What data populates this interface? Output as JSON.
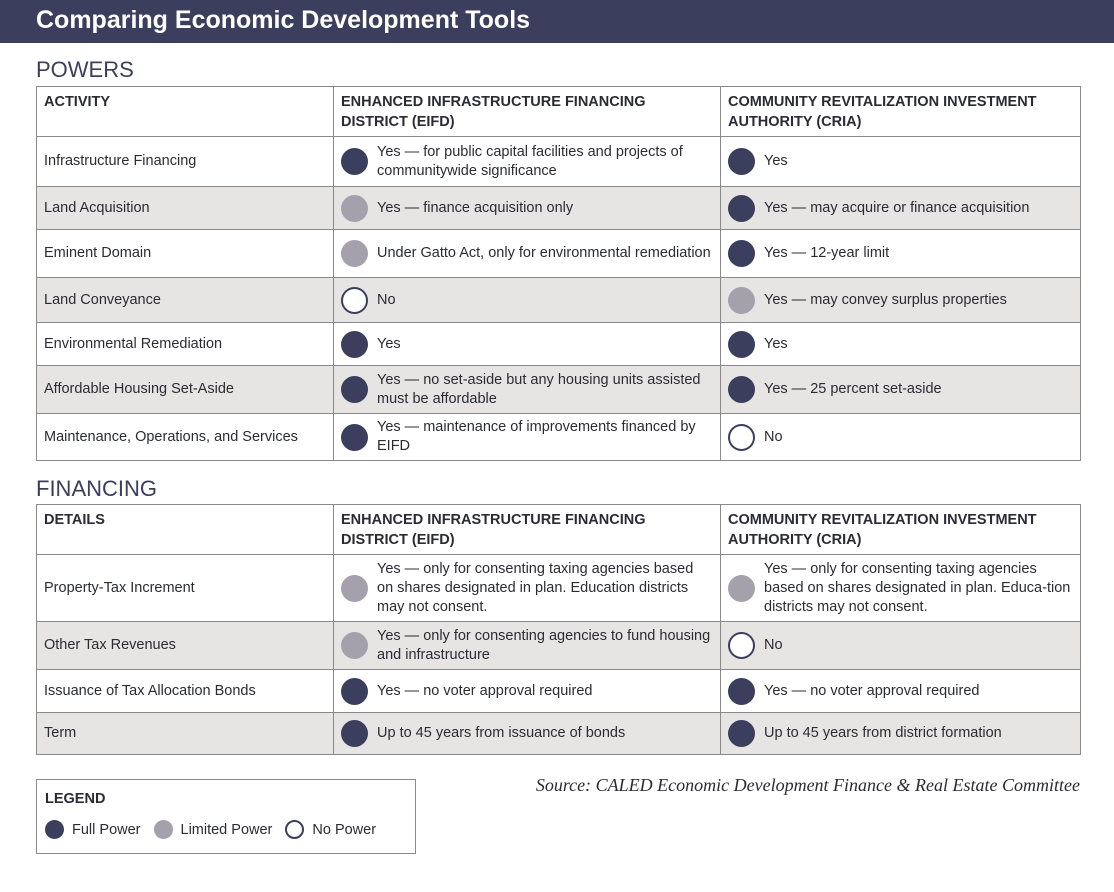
{
  "header": {
    "title": "Comparing Economic Development Tools"
  },
  "colors": {
    "full_power": "#3b3e5c",
    "limited_power": "#a4a1ad",
    "no_power": "#ffffff",
    "header_bg": "#3b3e5c",
    "shaded_row": "#e6e5e3"
  },
  "powers": {
    "title": "POWERS",
    "columns": [
      "ACTIVITY",
      "ENHANCED INFRASTRUCTURE FINANCING DISTRICT (EIFD)",
      "COMMUNITY REVITALIZATION INVESTMENT AUTHORITY (CRIA)"
    ],
    "rows": [
      {
        "activity": "Infrastructure Financing",
        "eifd": {
          "level": "full",
          "text": "Yes — for public capital facilities and projects of communitywide significance"
        },
        "cria": {
          "level": "full",
          "text": "Yes"
        }
      },
      {
        "activity": "Land Acquisition",
        "eifd": {
          "level": "limited",
          "text": "Yes — finance acquisition only"
        },
        "cria": {
          "level": "full",
          "text": "Yes — may acquire or finance acquisition"
        }
      },
      {
        "activity": "Eminent Domain",
        "eifd": {
          "level": "limited",
          "text": "Under Gatto Act, only for environmental remediation"
        },
        "cria": {
          "level": "full",
          "text": "Yes — 12-year limit"
        }
      },
      {
        "activity": "Land Conveyance",
        "eifd": {
          "level": "none",
          "text": "No"
        },
        "cria": {
          "level": "limited",
          "text": "Yes — may convey surplus properties"
        }
      },
      {
        "activity": "Environmental Remediation",
        "eifd": {
          "level": "full",
          "text": "Yes"
        },
        "cria": {
          "level": "full",
          "text": "Yes"
        }
      },
      {
        "activity": "Affordable Housing Set-Aside",
        "eifd": {
          "level": "full",
          "text": "Yes — no set-aside but any housing units assisted must be affordable"
        },
        "cria": {
          "level": "full",
          "text": "Yes — 25 percent set-aside"
        }
      },
      {
        "activity": "Maintenance, Operations, and Services",
        "eifd": {
          "level": "full",
          "text": "Yes — maintenance of improvements financed by EIFD"
        },
        "cria": {
          "level": "none",
          "text": "No"
        }
      }
    ]
  },
  "financing": {
    "title": "FINANCING",
    "columns": [
      "DETAILS",
      "ENHANCED INFRASTRUCTURE FINANCING DISTRICT (EIFD)",
      "COMMUNITY REVITALIZATION INVESTMENT AUTHORITY (CRIA)"
    ],
    "rows": [
      {
        "activity": "Property-Tax Increment",
        "eifd": {
          "level": "limited",
          "text": "Yes — only for consenting taxing agencies based on shares designated in plan. Education districts may not consent."
        },
        "cria": {
          "level": "limited",
          "text": "Yes — only for consenting taxing agencies based on shares designated in plan. Educa-tion districts may not consent."
        }
      },
      {
        "activity": "Other Tax Revenues",
        "eifd": {
          "level": "limited",
          "text": "Yes — only for consenting agencies to fund housing and infrastructure"
        },
        "cria": {
          "level": "none",
          "text": "No"
        }
      },
      {
        "activity": "Issuance of Tax Allocation Bonds",
        "eifd": {
          "level": "full",
          "text": "Yes — no voter approval required"
        },
        "cria": {
          "level": "full",
          "text": "Yes — no voter approval required"
        }
      },
      {
        "activity": "Term",
        "eifd": {
          "level": "full",
          "text": "Up to 45 years from issuance of bonds"
        },
        "cria": {
          "level": "full",
          "text": "Up to 45 years from district formation"
        }
      }
    ]
  },
  "legend": {
    "title": "LEGEND",
    "items": [
      {
        "level": "full",
        "label": "Full Power"
      },
      {
        "level": "limited",
        "label": "Limited Power"
      },
      {
        "level": "none",
        "label": "No Power"
      }
    ]
  },
  "source": "Source: CALED Economic Development Finance & Real Estate Committee"
}
